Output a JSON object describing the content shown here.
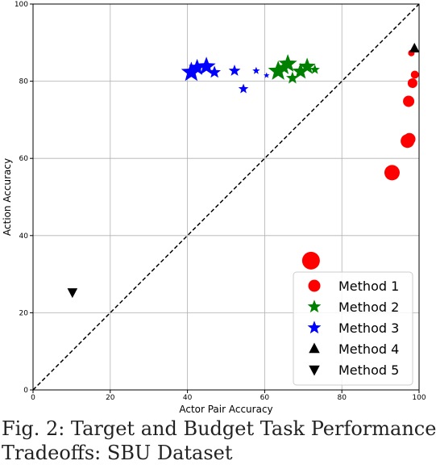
{
  "caption": {
    "line1": "Fig. 2: Target and Budget Task Performance",
    "line2": "Tradeoffs: SBU Dataset"
  },
  "chart_data": {
    "type": "scatter",
    "xlabel": "Actor Pair Accuracy",
    "ylabel": "Action Accuracy",
    "xlim": [
      0,
      100
    ],
    "ylim": [
      0,
      100
    ],
    "xticks": [
      0,
      20,
      40,
      60,
      80,
      100
    ],
    "yticks": [
      0,
      20,
      40,
      60,
      80,
      100
    ],
    "grid": true,
    "diagonal": "dashed y=x",
    "legend_position": "bottom-right",
    "series": [
      {
        "name": "Method 1",
        "marker": "circle",
        "color": "#ff0000",
        "points": [
          {
            "x": 72.0,
            "y": 33.5,
            "size": 22
          },
          {
            "x": 93.0,
            "y": 56.3,
            "size": 19
          },
          {
            "x": 97.0,
            "y": 64.5,
            "size": 17
          },
          {
            "x": 97.5,
            "y": 65.0,
            "size": 15
          },
          {
            "x": 97.3,
            "y": 74.8,
            "size": 14
          },
          {
            "x": 98.3,
            "y": 79.5,
            "size": 12
          },
          {
            "x": 98.9,
            "y": 81.7,
            "size": 10
          },
          {
            "x": 98.0,
            "y": 87.3,
            "size": 8
          }
        ]
      },
      {
        "name": "Method 2",
        "marker": "star",
        "color": "#008000",
        "points": [
          {
            "x": 63.5,
            "y": 82.6,
            "size": 24
          },
          {
            "x": 66.0,
            "y": 84.5,
            "size": 22
          },
          {
            "x": 65.0,
            "y": 83.5,
            "size": 18
          },
          {
            "x": 67.2,
            "y": 80.8,
            "size": 15
          },
          {
            "x": 69.3,
            "y": 82.5,
            "size": 20
          },
          {
            "x": 71.0,
            "y": 83.8,
            "size": 20
          },
          {
            "x": 73.0,
            "y": 83.0,
            "size": 12
          }
        ]
      },
      {
        "name": "Method 3",
        "marker": "star",
        "color": "#0000ff",
        "points": [
          {
            "x": 41.0,
            "y": 82.3,
            "size": 24
          },
          {
            "x": 42.5,
            "y": 83.5,
            "size": 20
          },
          {
            "x": 44.9,
            "y": 83.8,
            "size": 22
          },
          {
            "x": 47.0,
            "y": 82.3,
            "size": 15
          },
          {
            "x": 52.2,
            "y": 82.7,
            "size": 14
          },
          {
            "x": 54.5,
            "y": 78.0,
            "size": 12
          },
          {
            "x": 57.8,
            "y": 82.7,
            "size": 9
          },
          {
            "x": 60.5,
            "y": 81.5,
            "size": 7
          }
        ]
      },
      {
        "name": "Method 4",
        "marker": "triangle-up",
        "color": "#000000",
        "points": [
          {
            "x": 98.8,
            "y": 88.5,
            "size": 14
          }
        ]
      },
      {
        "name": "Method 5",
        "marker": "triangle-down",
        "color": "#000000",
        "points": [
          {
            "x": 10.2,
            "y": 25.3,
            "size": 14
          }
        ]
      }
    ]
  }
}
